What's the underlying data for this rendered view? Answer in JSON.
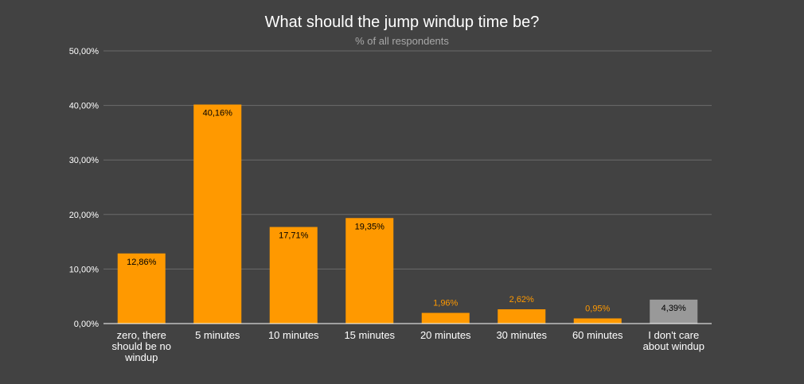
{
  "chart_data": {
    "type": "bar",
    "title": "What should the jump windup time be?",
    "subtitle": "% of all respondents",
    "xlabel": "",
    "ylabel": "",
    "ylim": [
      0,
      50
    ],
    "yticks": [
      0,
      10,
      20,
      30,
      40,
      50
    ],
    "ytick_labels": [
      "0,00%",
      "10,00%",
      "20,00%",
      "30,00%",
      "40,00%",
      "50,00%"
    ],
    "grid": true,
    "legend": "none",
    "categories": [
      [
        "zero, there",
        "should be no",
        "windup"
      ],
      [
        "5 minutes"
      ],
      [
        "10 minutes"
      ],
      [
        "15 minutes"
      ],
      [
        "20 minutes"
      ],
      [
        "30 minutes"
      ],
      [
        "60 minutes"
      ],
      [
        "I don't care",
        "about windup"
      ]
    ],
    "values": [
      12.86,
      40.16,
      17.71,
      19.35,
      1.96,
      2.62,
      0.95,
      4.39
    ],
    "value_labels": [
      "12,86%",
      "40,16%",
      "17,71%",
      "19,35%",
      "1,96%",
      "2,62%",
      "0,95%",
      "4,39%"
    ],
    "bar_colors": [
      "#ff9900",
      "#ff9900",
      "#ff9900",
      "#ff9900",
      "#ff9900",
      "#ff9900",
      "#ff9900",
      "#999999"
    ],
    "colors": {
      "background": "#424242",
      "grid": "#6b6b6b",
      "axis": "#ffffff",
      "label_inside": "#000000",
      "label_outside": "#ff9900"
    }
  }
}
